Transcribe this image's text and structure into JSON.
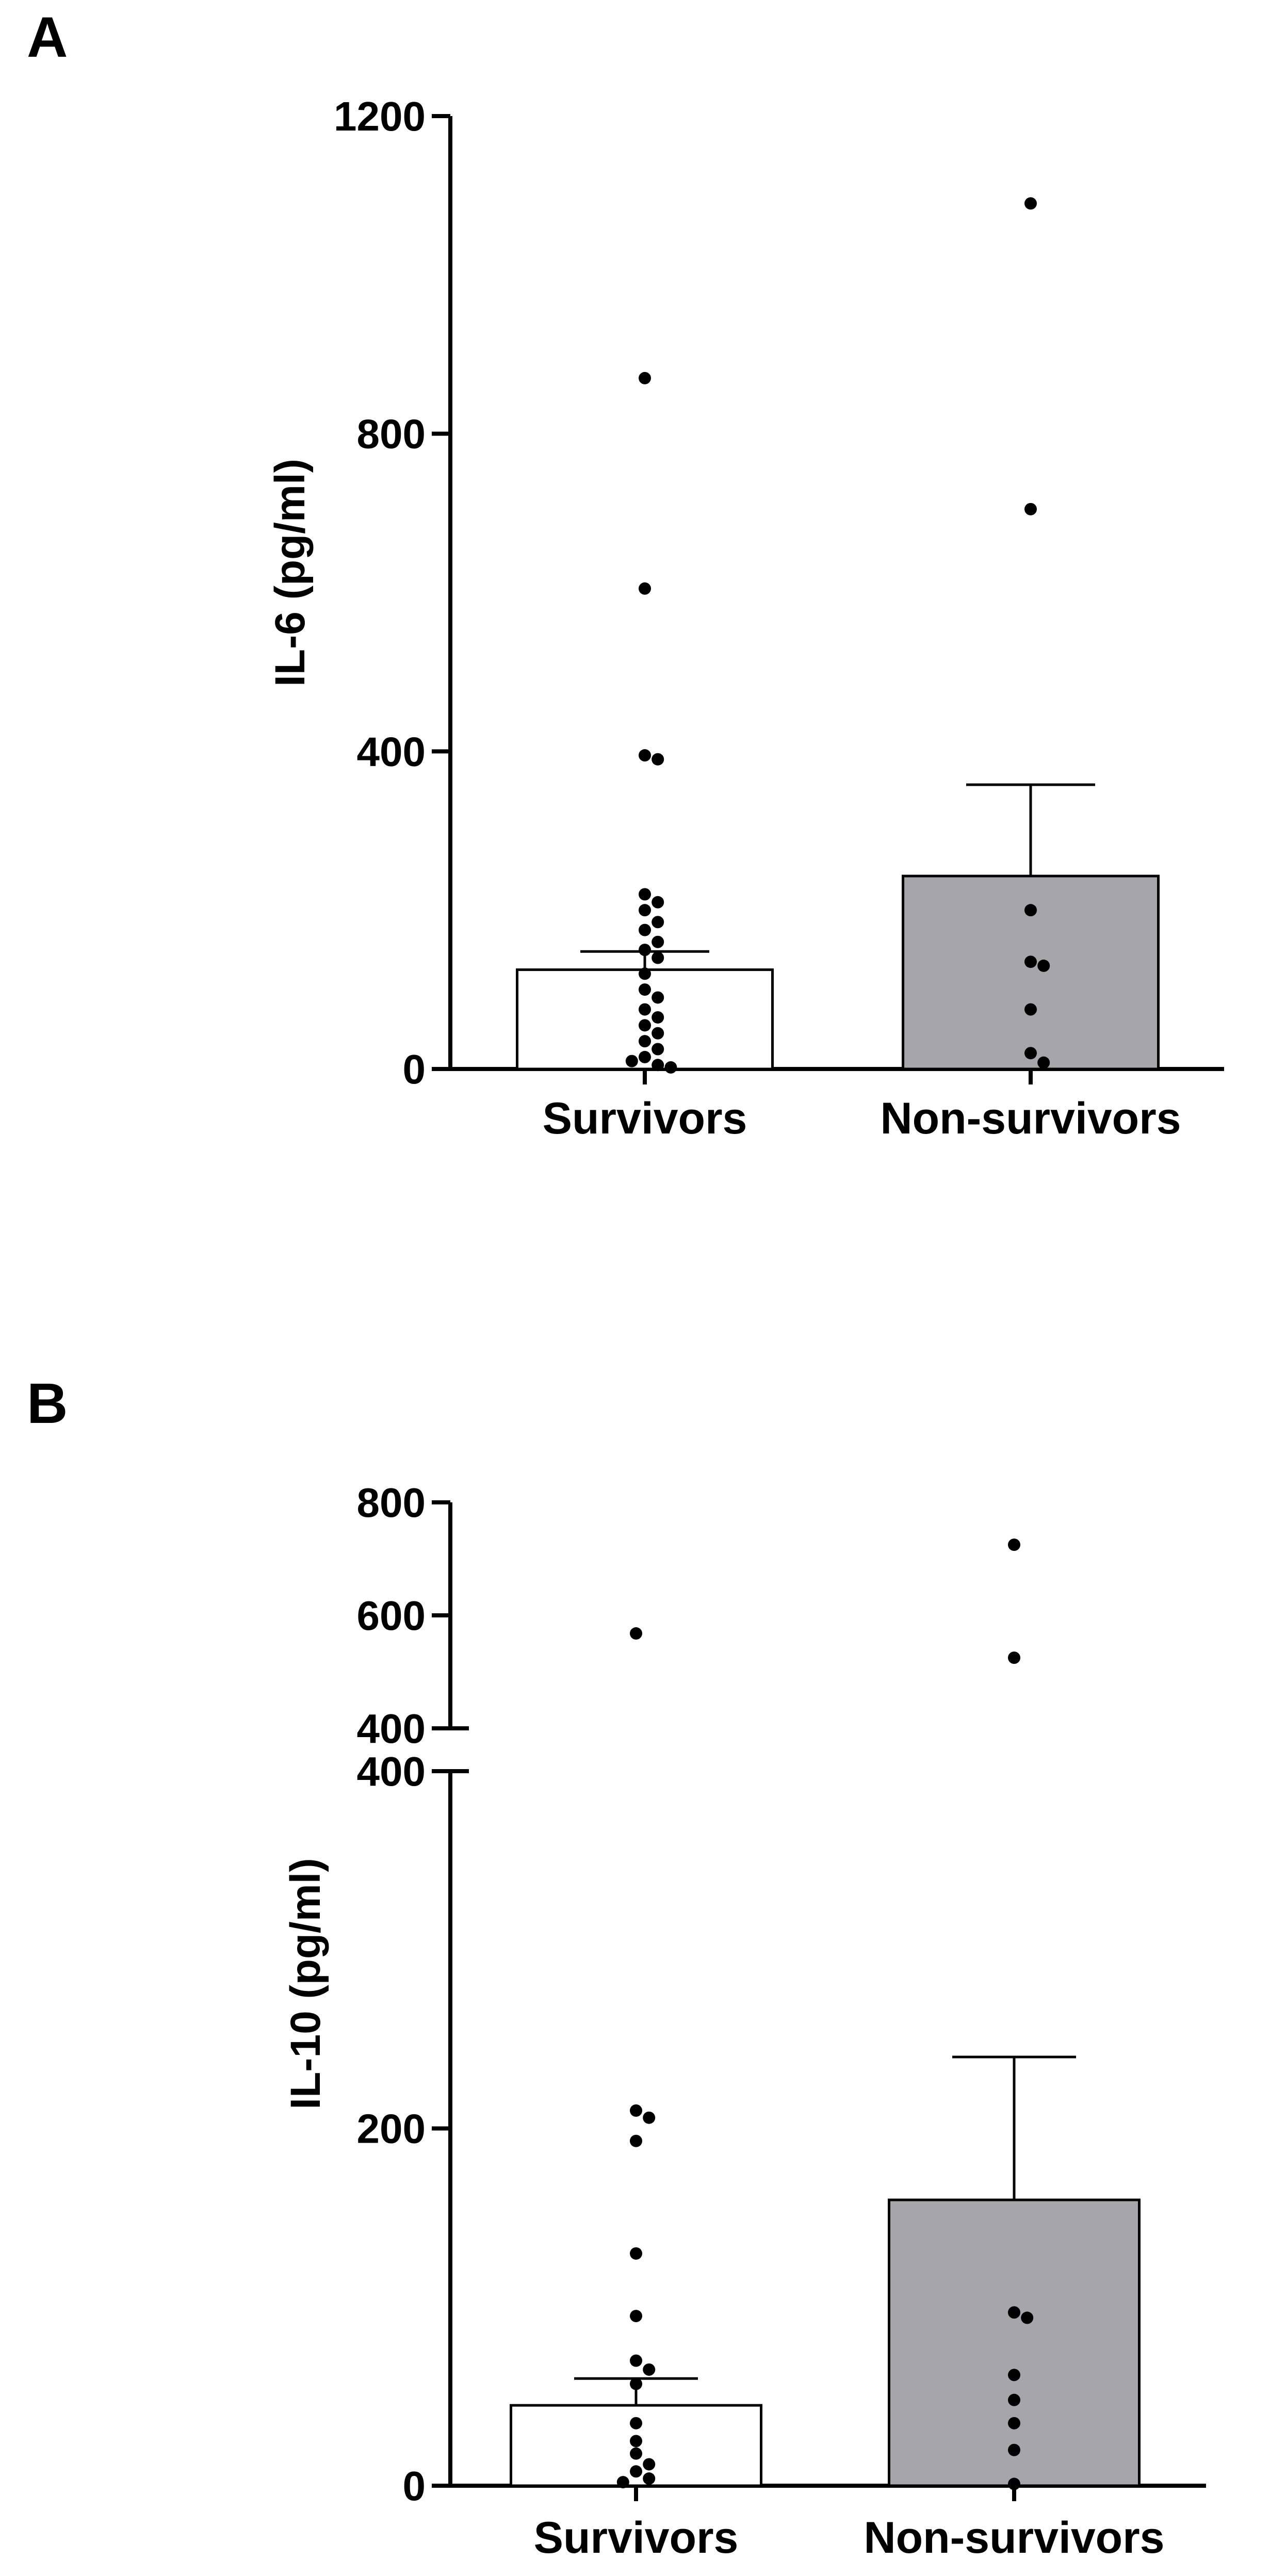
{
  "chart_data": [
    {
      "panel": "A",
      "type": "bar",
      "ylabel": "IL-6 (pg/ml)",
      "xlabel": "",
      "ylim": [
        0,
        1200
      ],
      "yticks": [
        0,
        400,
        800,
        1200
      ],
      "categories": [
        "Survivors",
        "Non-survivors"
      ],
      "values": [
        125,
        243
      ],
      "error_upper": [
        148,
        358
      ],
      "bar_colors": [
        "#ffffff",
        "#a6a5aa"
      ],
      "points": [
        [
          870,
          605,
          395,
          390,
          220,
          210,
          200,
          185,
          175,
          160,
          150,
          140,
          120,
          100,
          90,
          75,
          65,
          55,
          45,
          35,
          25,
          15,
          10,
          5,
          2
        ],
        [
          1090,
          705,
          200,
          135,
          130,
          75,
          20,
          8
        ]
      ]
    },
    {
      "panel": "B",
      "type": "bar",
      "ylabel": "IL-10 (pg/ml)",
      "xlabel": "",
      "axis_break": [
        400,
        400
      ],
      "lower_ylim": [
        0,
        400
      ],
      "upper_ylim": [
        400,
        800
      ],
      "yticks_lower": [
        0,
        200,
        400
      ],
      "yticks_upper": [
        400,
        600,
        800
      ],
      "categories": [
        "Survivors",
        "Non-survivors"
      ],
      "values": [
        45,
        160
      ],
      "error_upper": [
        60,
        240
      ],
      "bar_colors": [
        "#ffffff",
        "#a6a5aa"
      ],
      "points": [
        [
          568,
          210,
          206,
          193,
          130,
          95,
          70,
          65,
          57,
          35,
          25,
          18,
          12,
          8,
          4,
          2
        ],
        [
          725,
          525,
          97,
          94,
          62,
          48,
          35,
          20,
          1
        ]
      ]
    }
  ]
}
